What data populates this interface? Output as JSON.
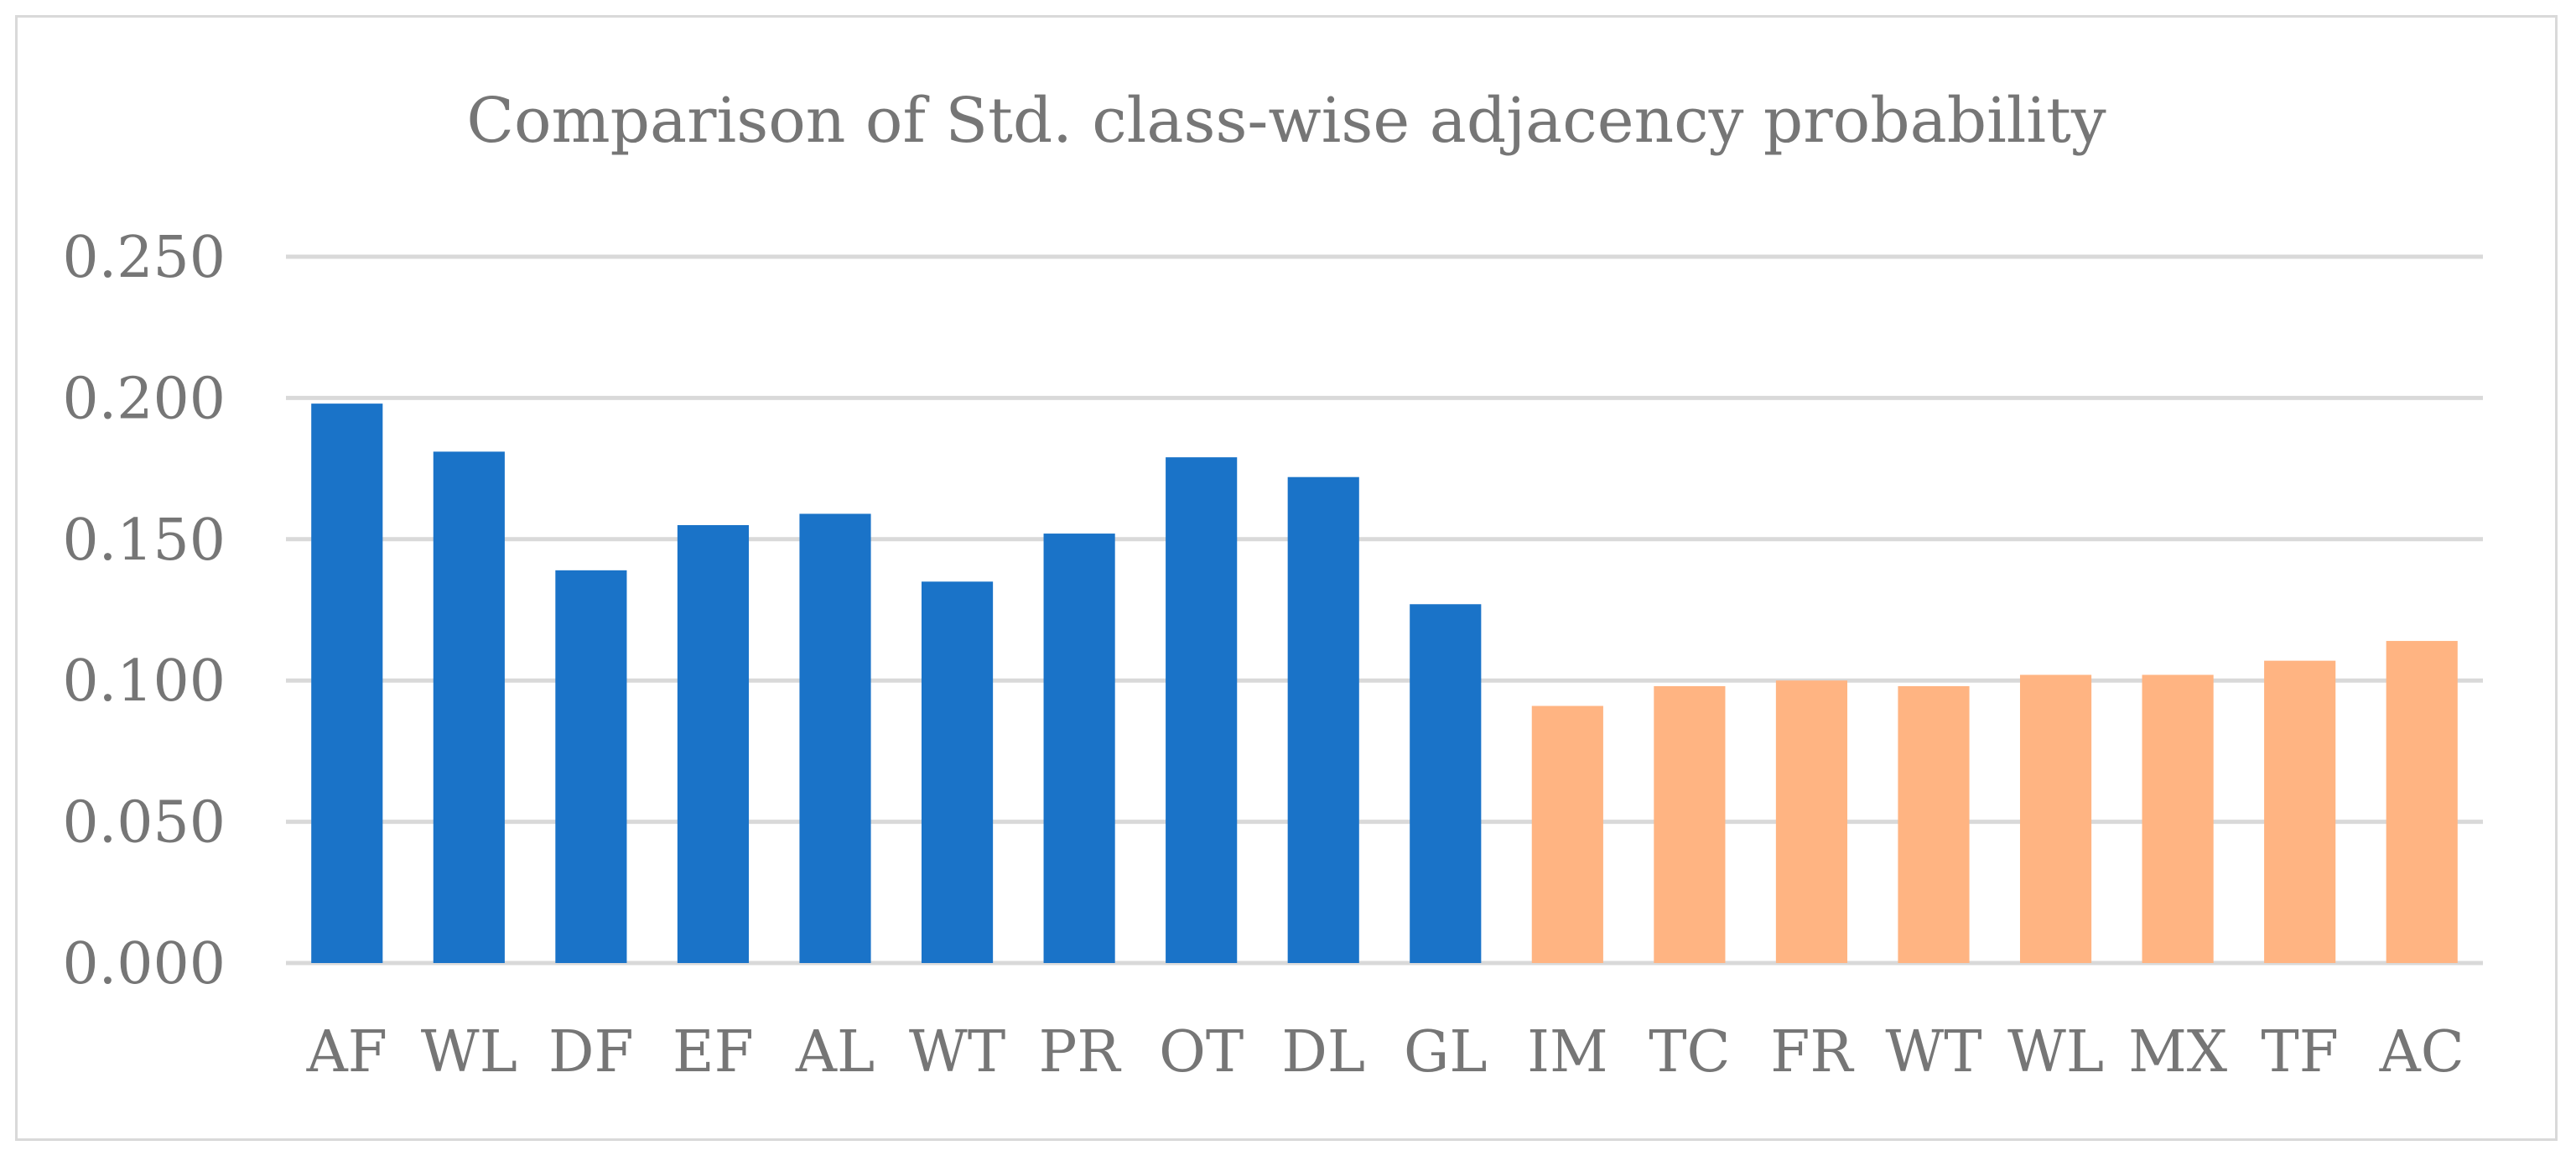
{
  "chart_data": {
    "type": "bar",
    "title": "Comparison of Std. class-wise adjacency probability",
    "xlabel": "",
    "ylabel": "",
    "ylim": [
      0,
      0.25
    ],
    "yticks": [
      "0.000",
      "0.050",
      "0.100",
      "0.150",
      "0.200",
      "0.250"
    ],
    "ytick_values": [
      0,
      0.05,
      0.1,
      0.15,
      0.2,
      0.25
    ],
    "grid": true,
    "legend": "none",
    "categories": [
      "AF",
      "WL",
      "DF",
      "EF",
      "AL",
      "WT",
      "PR",
      "OT",
      "DL",
      "GL",
      "IM",
      "TC",
      "FR",
      "WT",
      "WL",
      "MX",
      "TF",
      "AC"
    ],
    "values": [
      0.198,
      0.181,
      0.139,
      0.155,
      0.159,
      0.135,
      0.152,
      0.179,
      0.172,
      0.127,
      0.091,
      0.098,
      0.1,
      0.098,
      0.102,
      0.102,
      0.107,
      0.114
    ],
    "colors": [
      "#1a73c8",
      "#1a73c8",
      "#1a73c8",
      "#1a73c8",
      "#1a73c8",
      "#1a73c8",
      "#1a73c8",
      "#1a73c8",
      "#1a73c8",
      "#1a73c8",
      "#ffb482",
      "#ffb482",
      "#ffb482",
      "#ffb482",
      "#ffb482",
      "#ffb482",
      "#ffb482",
      "#ffb482"
    ],
    "gridline_color": "#d9d9d9",
    "text_color": "#767676"
  }
}
